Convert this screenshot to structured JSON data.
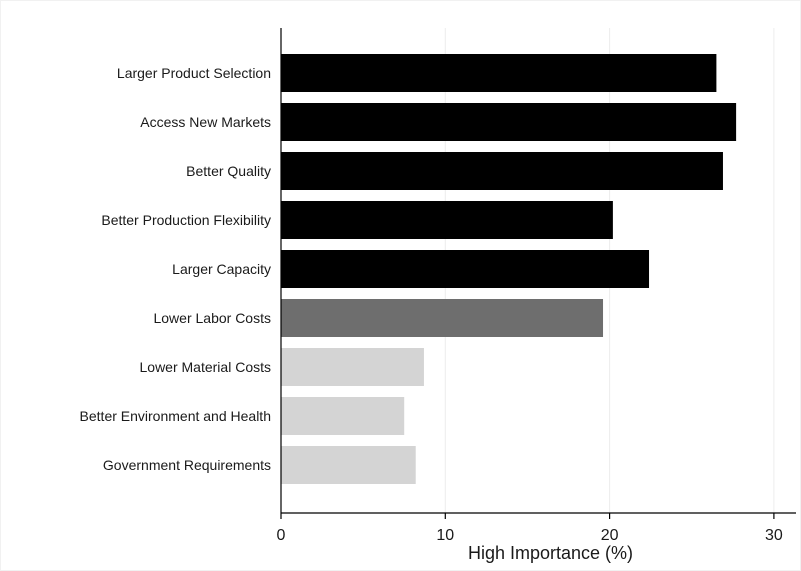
{
  "chart_data": {
    "type": "bar",
    "orientation": "horizontal",
    "title": "",
    "xlabel": "High Importance (%)",
    "ylabel": "",
    "xlim": [
      0,
      31.5
    ],
    "xticks": [
      0,
      10,
      20,
      30
    ],
    "grid": true,
    "legend": "none",
    "categories": [
      "Larger Product Selection",
      "Access New Markets",
      "Better Quality",
      "Better Production Flexibility",
      "Larger Capacity",
      "Lower Labor Costs",
      "Lower Material Costs",
      "Better Environment and Health",
      "Government Requirements"
    ],
    "values": [
      26.5,
      27.7,
      26.9,
      20.2,
      22.4,
      19.6,
      8.7,
      7.5,
      8.2
    ],
    "bar_colors": [
      "#000000",
      "#000000",
      "#000000",
      "#000000",
      "#000000",
      "#6e6e6e",
      "#d4d4d4",
      "#d4d4d4",
      "#d4d4d4"
    ]
  }
}
